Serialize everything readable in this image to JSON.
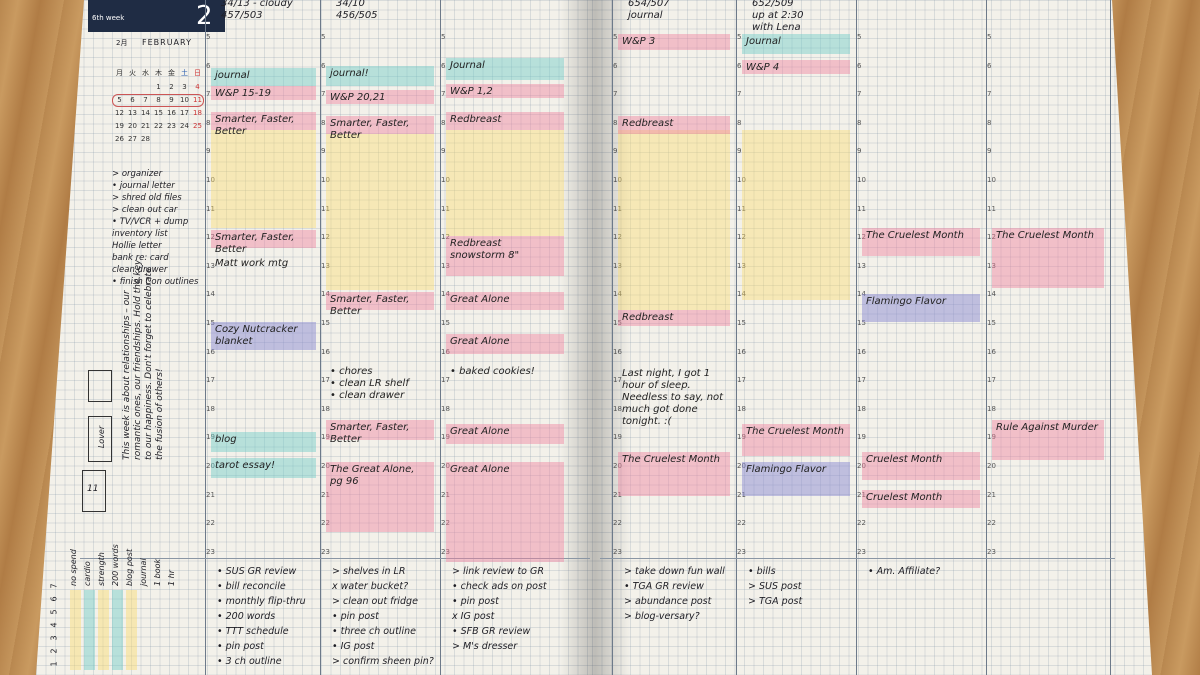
{
  "left": {
    "header": {
      "week": "6th week",
      "day": "2",
      "month_jp": "2月",
      "month": "FEBRUARY"
    },
    "calendar": {
      "weekdays": [
        "月",
        "火",
        "水",
        "木",
        "金",
        "土",
        "日"
      ],
      "dates": [
        "1",
        "2",
        "3",
        "4",
        "5",
        "6",
        "7",
        "8",
        "9",
        "10",
        "11",
        "12",
        "13",
        "14",
        "15",
        "16",
        "17",
        "18",
        "19",
        "20",
        "21",
        "22",
        "23",
        "24",
        "25",
        "26",
        "27",
        "28"
      ]
    },
    "todos": [
      "> organizer",
      "• journal letter",
      "> shred old files",
      "> clean out car",
      "• TV/VCR + dump",
      "inventory list",
      "Hollie letter",
      "bank re: card",
      "clean drawer",
      "• finish Con outlines"
    ],
    "reflection": "This week is about relationships – our romantic ones, our friendships. Hold the key to our happiness. Don't forget to celebrate the fusion of others!",
    "card_labels": [
      "Lover",
      "11"
    ],
    "habits": [
      "no spend",
      "cardio",
      "strength",
      "200 words",
      "blog post",
      "journal",
      "1 book",
      "1 hr"
    ],
    "habit_days": [
      "1",
      "2",
      "3",
      "4",
      "5",
      "6",
      "7"
    ],
    "days": [
      {
        "head": [
          "34/13 - cloudy",
          "457/503"
        ],
        "entries": [
          "journal",
          "W&P 15-19",
          "Smarter, Faster, Better",
          "Smarter, Faster, Better",
          "Matt work mtg",
          "Cozy Nutcracker blanket",
          "blog",
          "tarot essay!"
        ],
        "tasks": [
          "• SUS GR review",
          "• bill reconcile",
          "• monthly flip-thru",
          "• 200 words",
          "• TTT schedule",
          "• pin post",
          "• 3 ch outline"
        ]
      },
      {
        "head": [
          "34/10",
          "456/505"
        ],
        "entries": [
          "journal!",
          "W&P 20,21",
          "Smarter, Faster, Better",
          "Smarter, Faster, Better",
          "• chores\n• clean LR shelf\n• clean drawer",
          "Smarter, Faster, Better",
          "The Great Alone, pg 96"
        ],
        "tasks": [
          "> shelves in LR",
          "x water bucket?",
          "> clean out fridge",
          "• pin post",
          "• three ch outline",
          "• IG post",
          "> confirm sheen pin?"
        ]
      },
      {
        "entries": [
          "Journal",
          "W&P 1,2",
          "Redbreast",
          "Redbreast\nsnowstorm 8\"",
          "Great Alone",
          "Great Alone",
          "• baked cookies!",
          "Great Alone",
          "Great Alone"
        ],
        "tasks": [
          "> link review to GR",
          "• check ads on post",
          "• pin post",
          "x IG post",
          "• SFB GR review",
          "> M's dresser"
        ]
      }
    ]
  },
  "right": {
    "days": [
      {
        "head": [
          "654/507",
          "journal"
        ],
        "entries": [
          "W&P 3",
          "Redbreast",
          "Redbreast",
          "Last night, I got 1 hour of sleep. Needless to say, not much got done tonight. :(",
          "The Cruelest Month"
        ],
        "tasks": [
          "> take down fun wall",
          "• TGA GR review",
          "> abundance post",
          "> blog-versary?"
        ]
      },
      {
        "head": [
          "652/509",
          "up at 2:30",
          "with Lena"
        ],
        "entries": [
          "Journal",
          "W&P 4",
          "The Cruelest Month",
          "Flamingo Flavor"
        ],
        "tasks": [
          "• bills",
          "> SUS post",
          "> TGA post"
        ]
      },
      {
        "entries": [
          "The Cruelest Month",
          "Flamingo Flavor",
          "Cruelest Month",
          "Cruelest Month"
        ],
        "tasks": [
          "• Am. Affiliate?"
        ]
      },
      {
        "entries": [
          "The Cruelest Month",
          "Rule Against Murder"
        ]
      }
    ]
  },
  "hours": [
    "5",
    "6",
    "7",
    "8",
    "9",
    "10",
    "11",
    "12",
    "13",
    "14",
    "15",
    "16",
    "17",
    "18",
    "19",
    "20",
    "21",
    "22",
    "23"
  ]
}
